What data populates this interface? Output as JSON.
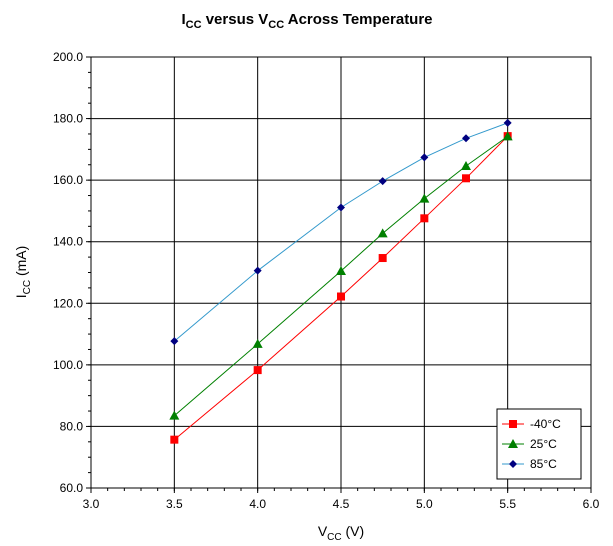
{
  "chart_data": {
    "type": "line",
    "title": {
      "main1": "I",
      "sub1": "CC",
      "main2": " versus V",
      "sub2": "CC",
      "main3": " Across Temperature"
    },
    "xlabel": {
      "main": "V",
      "sub": "CC",
      "rest": " (V)"
    },
    "ylabel": {
      "main": "I",
      "sub": "CC",
      "rest": " (mA)"
    },
    "xlim": [
      3.0,
      6.0
    ],
    "ylim": [
      60.0,
      200.0
    ],
    "x_ticks": [
      "3.0",
      "3.5",
      "4.0",
      "4.5",
      "5.0",
      "5.5",
      "6.0"
    ],
    "y_ticks": [
      "60.0",
      "80.0",
      "100.0",
      "120.0",
      "140.0",
      "160.0",
      "180.0",
      "200.0"
    ],
    "grid": true,
    "legend_position": "bottom-right",
    "series": [
      {
        "name": "-40°C",
        "color": "#ff0000",
        "marker": "square",
        "x": [
          3.5,
          4.0,
          4.5,
          4.75,
          5.0,
          5.25,
          5.5
        ],
        "y": [
          75.7,
          98.3,
          122.2,
          134.7,
          147.6,
          160.6,
          174.3
        ]
      },
      {
        "name": "25°C",
        "color": "#008000",
        "marker": "triangle",
        "x": [
          3.5,
          4.0,
          4.5,
          4.75,
          5.0,
          5.25,
          5.5
        ],
        "y": [
          83.5,
          106.8,
          130.5,
          142.7,
          154.0,
          164.6,
          174.2
        ]
      },
      {
        "name": "85°C",
        "color": "#000080",
        "line_color": "#3399cc",
        "marker": "diamond",
        "x": [
          3.5,
          4.0,
          4.5,
          4.75,
          5.0,
          5.25,
          5.5
        ],
        "y": [
          107.7,
          130.6,
          151.1,
          159.7,
          167.4,
          173.6,
          178.6
        ]
      }
    ]
  }
}
